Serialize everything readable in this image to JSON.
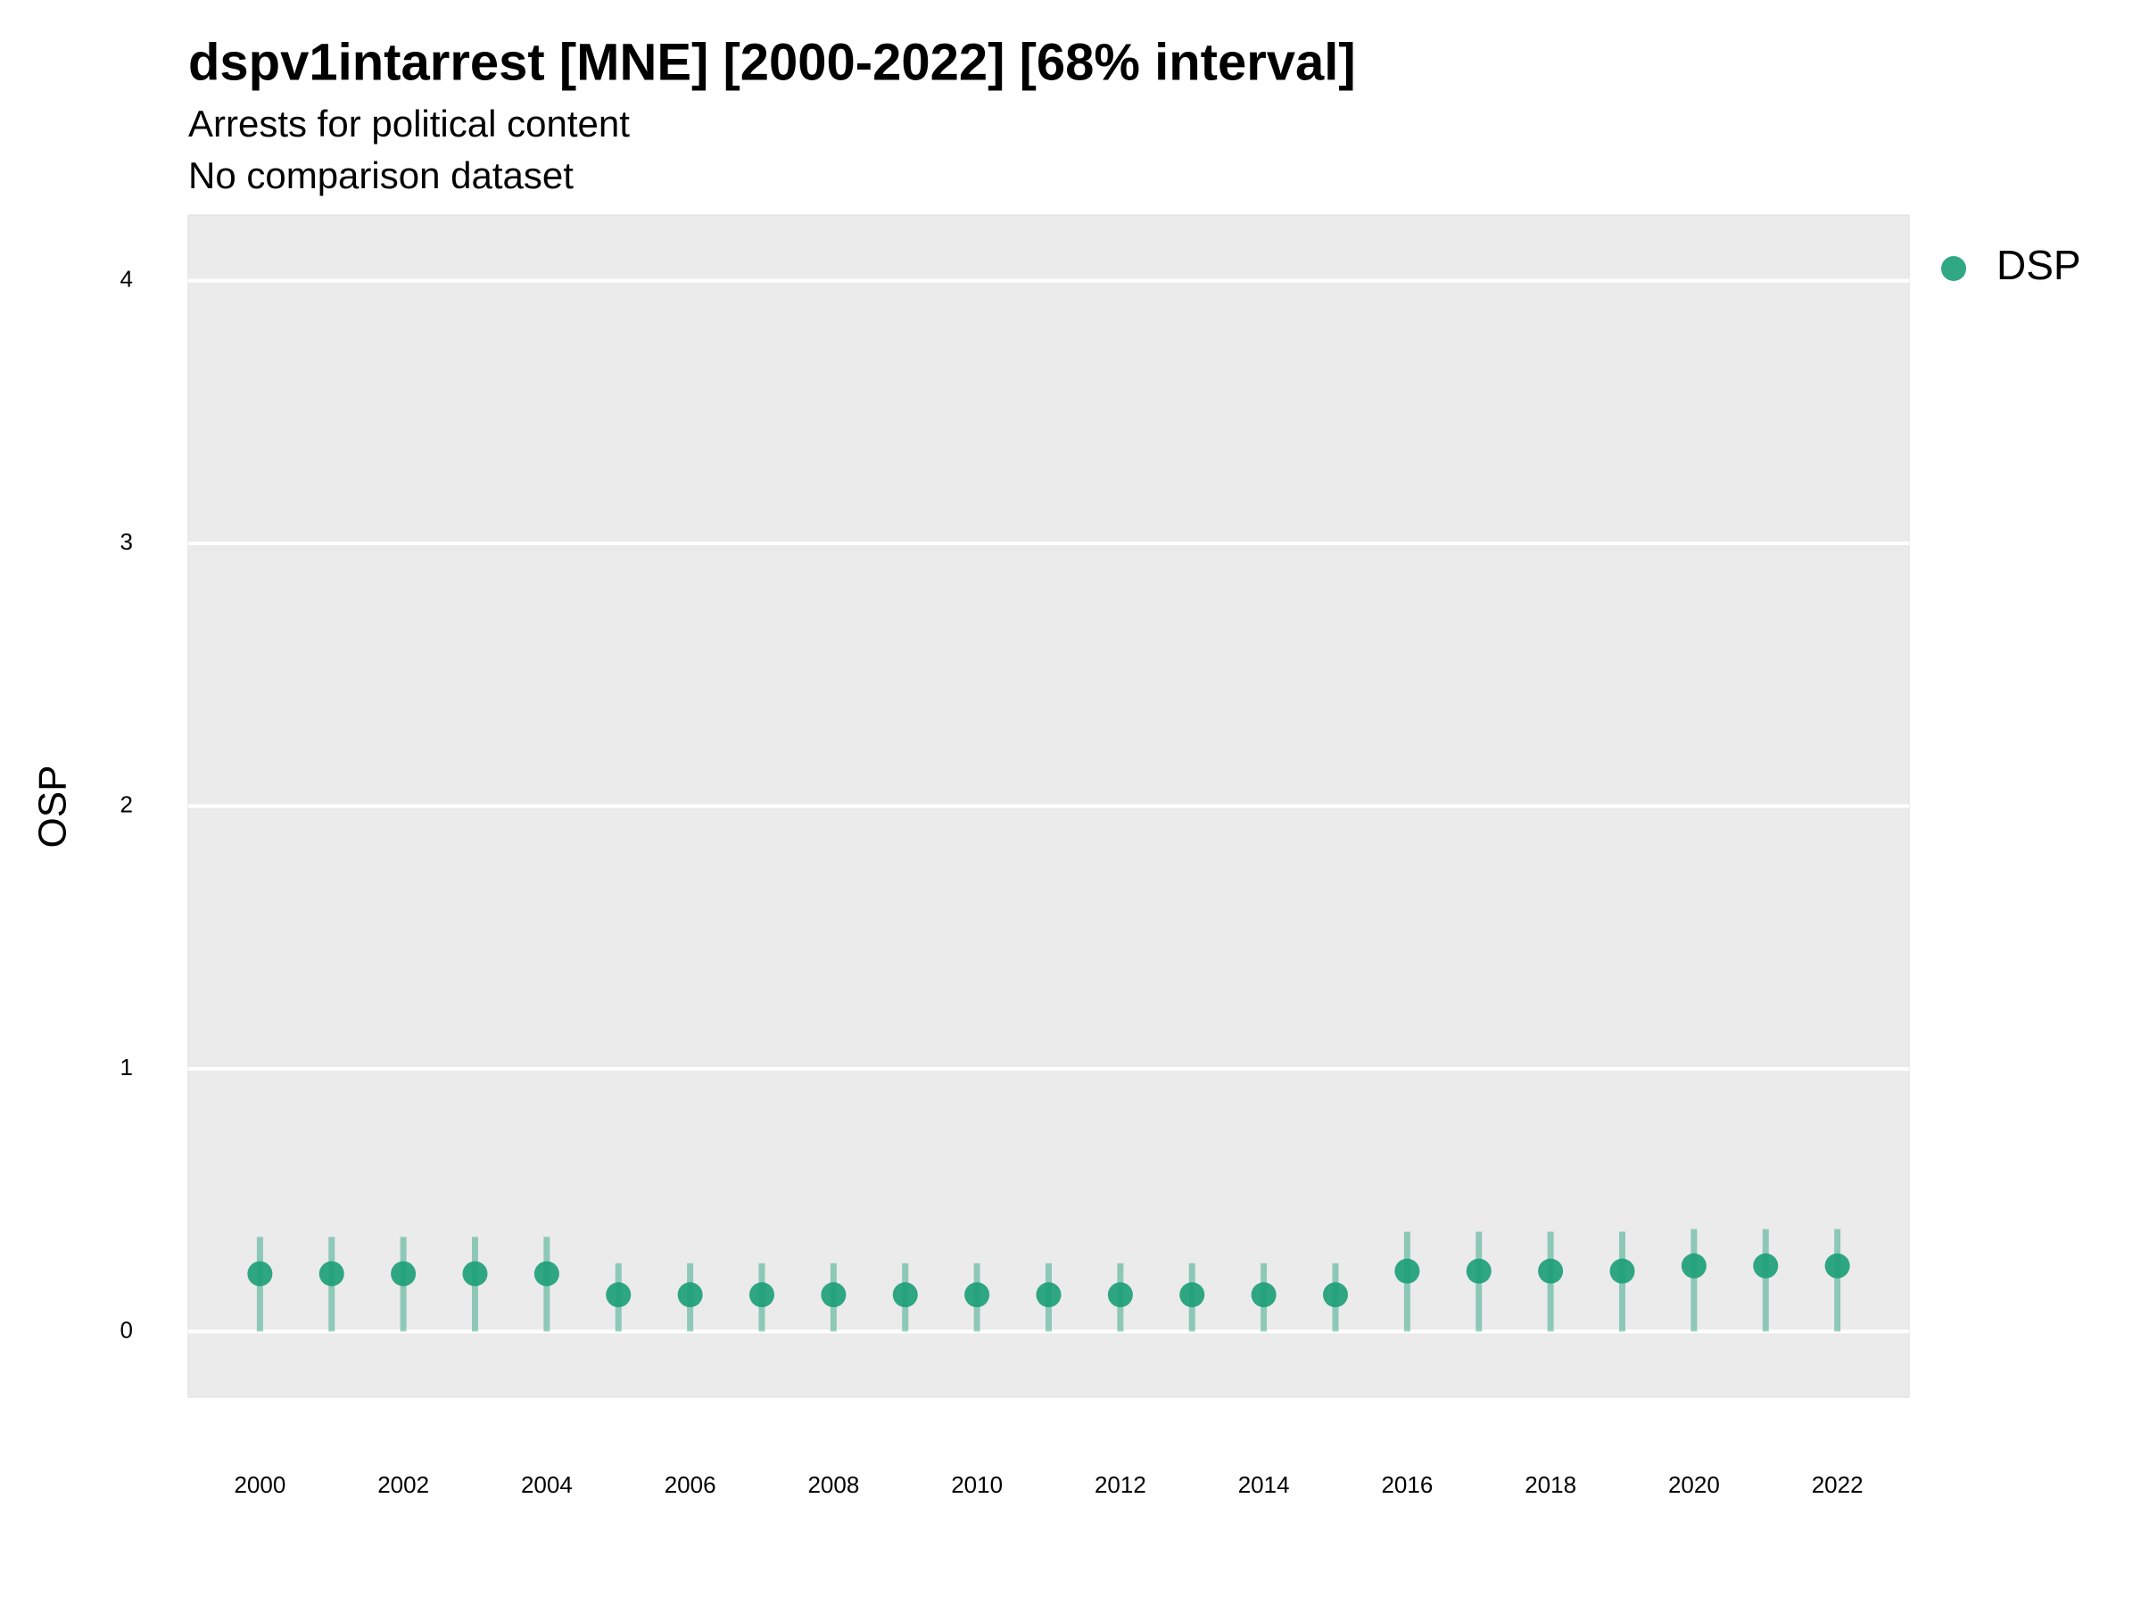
{
  "chart_data": {
    "type": "pointrange",
    "title": "dspv1intarrest [MNE] [2000-2022] [68% interval]",
    "subtitle": [
      "Arrests for political content",
      "No comparison dataset"
    ],
    "y_label": "OSP",
    "x": [
      2000,
      2001,
      2002,
      2003,
      2004,
      2005,
      2006,
      2007,
      2008,
      2009,
      2010,
      2011,
      2012,
      2013,
      2014,
      2015,
      2016,
      2017,
      2018,
      2019,
      2020,
      2021,
      2022
    ],
    "series": [
      {
        "name": "DSP",
        "color": "#1b9e77",
        "values": [
          0.22,
          0.22,
          0.22,
          0.22,
          0.22,
          0.14,
          0.14,
          0.14,
          0.14,
          0.14,
          0.14,
          0.14,
          0.14,
          0.14,
          0.14,
          0.14,
          0.23,
          0.23,
          0.23,
          0.23,
          0.25,
          0.25,
          0.25
        ],
        "lower": [
          0,
          0,
          0,
          0,
          0,
          0,
          0,
          0,
          0,
          0,
          0,
          0,
          0,
          0,
          0,
          0,
          0,
          0,
          0,
          0,
          0,
          0,
          0
        ],
        "upper": [
          0.36,
          0.36,
          0.36,
          0.36,
          0.36,
          0.26,
          0.26,
          0.26,
          0.26,
          0.26,
          0.26,
          0.26,
          0.26,
          0.26,
          0.26,
          0.26,
          0.38,
          0.38,
          0.38,
          0.38,
          0.39,
          0.39,
          0.39
        ]
      }
    ],
    "xlim": [
      1999,
      2023
    ],
    "xticks": [
      2000,
      2002,
      2004,
      2006,
      2008,
      2010,
      2012,
      2014,
      2016,
      2018,
      2020,
      2022
    ],
    "ylim": [
      -0.25,
      4.25
    ],
    "yticks": [
      0,
      1,
      2,
      3,
      4
    ],
    "grid": true,
    "legend": "right"
  }
}
